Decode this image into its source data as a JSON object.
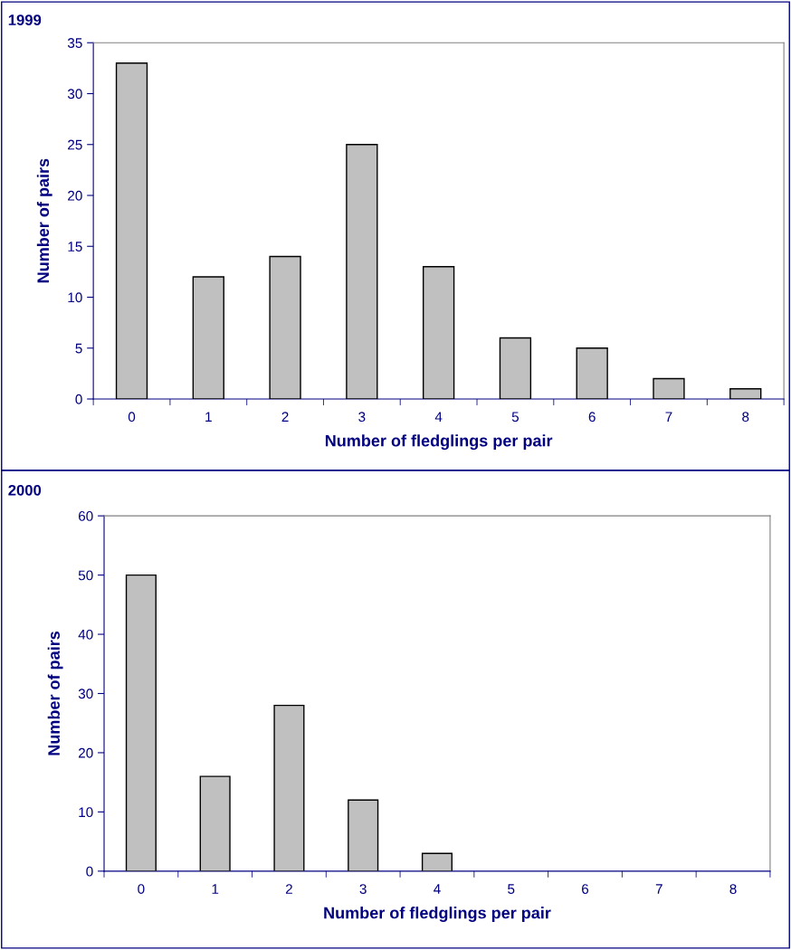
{
  "chart_data": [
    {
      "type": "bar",
      "title": "1999",
      "xlabel": "Number of fledglings per pair",
      "ylabel": "Number of pairs",
      "categories": [
        "0",
        "1",
        "2",
        "3",
        "4",
        "5",
        "6",
        "7",
        "8"
      ],
      "values": [
        33,
        12,
        14,
        25,
        13,
        6,
        5,
        2,
        1
      ],
      "color": "#c0c0c0",
      "ylim": [
        0,
        35
      ],
      "yticks": [
        0,
        5,
        10,
        15,
        20,
        25,
        30,
        35
      ],
      "grid": false
    },
    {
      "type": "bar",
      "title": "2000",
      "xlabel": "Number of fledglings per pair",
      "ylabel": "Number of pairs",
      "categories": [
        "0",
        "1",
        "2",
        "3",
        "4",
        "5",
        "6",
        "7",
        "8"
      ],
      "values": [
        50,
        16,
        28,
        12,
        3,
        0,
        0,
        0,
        0
      ],
      "color": "#c0c0c0",
      "ylim": [
        0,
        60
      ],
      "yticks": [
        0,
        10,
        20,
        30,
        40,
        50,
        60
      ],
      "grid": false
    }
  ]
}
